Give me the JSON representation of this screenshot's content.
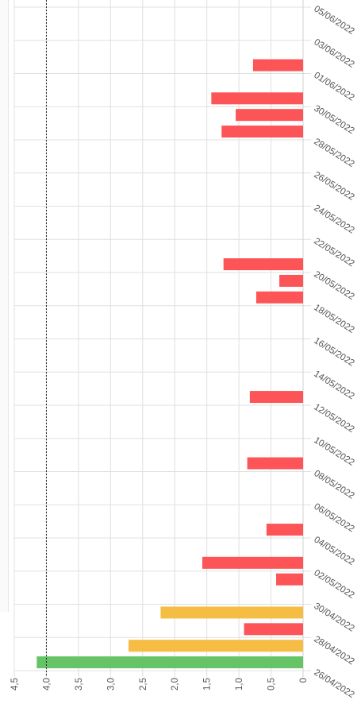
{
  "chart_data": {
    "type": "bar",
    "orientation": "horizontal",
    "categories": [
      "26/04/2022",
      "27/04/2022",
      "28/04/2022",
      "29/04/2022",
      "30/04/2022",
      "01/05/2022",
      "02/05/2022",
      "03/05/2022",
      "04/05/2022",
      "05/05/2022",
      "06/05/2022",
      "07/05/2022",
      "08/05/2022",
      "09/05/2022",
      "10/05/2022",
      "11/05/2022",
      "12/05/2022",
      "13/05/2022",
      "14/05/2022",
      "15/05/2022",
      "16/05/2022",
      "17/05/2022",
      "18/05/2022",
      "19/05/2022",
      "20/05/2022",
      "21/05/2022",
      "22/05/2022",
      "23/05/2022",
      "24/05/2022",
      "25/05/2022",
      "26/05/2022",
      "27/05/2022",
      "28/05/2022",
      "29/05/2022",
      "30/05/2022",
      "31/05/2022",
      "01/06/2022",
      "02/06/2022",
      "03/06/2022",
      "04/06/2022",
      "05/06/2022"
    ],
    "category_labels": [
      "26/04/2022",
      "",
      "28/04/2022",
      "",
      "30/04/2022",
      "",
      "02/05/2022",
      "",
      "04/05/2022",
      "",
      "06/05/2022",
      "",
      "08/05/2022",
      "",
      "10/05/2022",
      "",
      "12/05/2022",
      "",
      "14/05/2022",
      "",
      "16/05/2022",
      "",
      "18/05/2022",
      "",
      "20/05/2022",
      "",
      "22/05/2022",
      "",
      "24/05/2022",
      "",
      "26/05/2022",
      "",
      "28/05/2022",
      "",
      "30/05/2022",
      "",
      "01/06/2022",
      "",
      "03/06/2022",
      "",
      "05/06/2022"
    ],
    "values": [
      4.15,
      2.72,
      0.92,
      2.22,
      0,
      0.42,
      1.57,
      0,
      0.57,
      0,
      0,
      0,
      0.87,
      0,
      0,
      0,
      0.83,
      0,
      0,
      0,
      0,
      0,
      0.73,
      0.37,
      1.24,
      0,
      0,
      0,
      0,
      0,
      0,
      0,
      1.27,
      1.05,
      1.43,
      0,
      0.78,
      0,
      0,
      0,
      0
    ],
    "bar_colors": [
      "#66c466",
      "#f6bd45",
      "#fd5458",
      "#f6bd45",
      "#fd5458",
      "#fd5458",
      "#fd5458",
      "#fd5458",
      "#fd5458",
      "#fd5458",
      "#fd5458",
      "#fd5458",
      "#fd5458",
      "#fd5458",
      "#fd5458",
      "#fd5458",
      "#fd5458",
      "#fd5458",
      "#fd5458",
      "#fd5458",
      "#fd5458",
      "#fd5458",
      "#fd5458",
      "#fd5458",
      "#fd5458",
      "#fd5458",
      "#fd5458",
      "#fd5458",
      "#fd5458",
      "#fd5458",
      "#fd5458",
      "#fd5458",
      "#fd5458",
      "#fd5458",
      "#fd5458",
      "#fd5458",
      "#fd5458",
      "#fd5458",
      "#fd5458",
      "#fd5458",
      "#fd5458"
    ],
    "value_axis": {
      "min": 0,
      "max": 4.5,
      "ticks": [
        0,
        0.5,
        1.0,
        1.5,
        2.0,
        2.5,
        3.0,
        3.5,
        4.0,
        4.5
      ],
      "tick_labels": [
        "0",
        "0,5",
        "1,0",
        "1,5",
        "2,0",
        "2,5",
        "3,0",
        "3,5",
        "4,0",
        "4,5"
      ]
    },
    "reference_line": {
      "value": 4.0,
      "style": "dotted",
      "color": "#222222"
    },
    "grid": true,
    "title": "",
    "xlabel": "",
    "ylabel": ""
  }
}
